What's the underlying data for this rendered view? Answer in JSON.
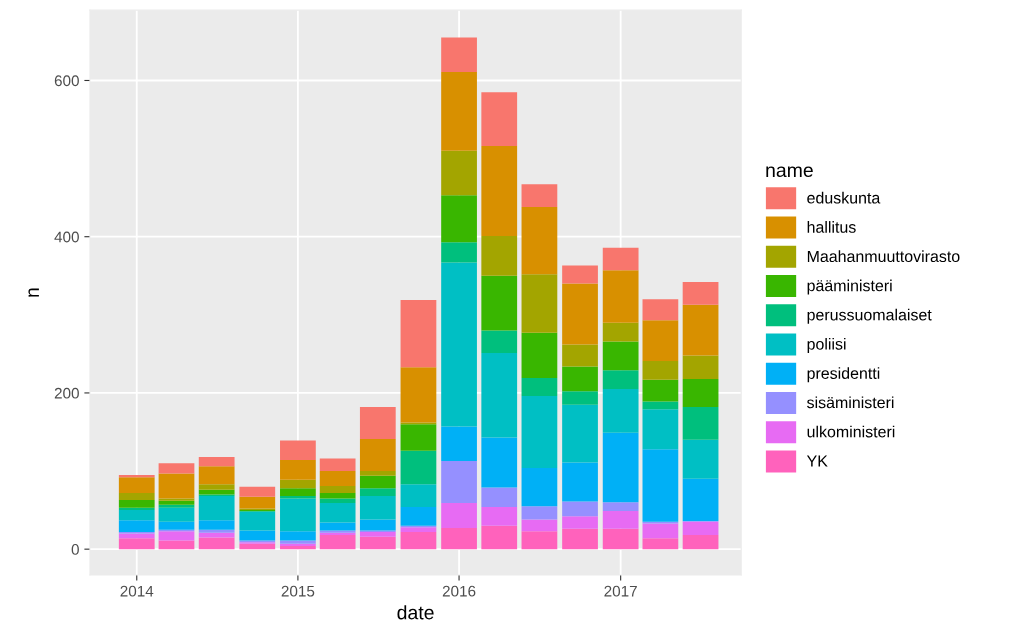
{
  "chart_data": {
    "type": "bar",
    "stacked": true,
    "xlabel": "date",
    "ylabel": "n",
    "legend_title": "name",
    "legend": "right",
    "grid": true,
    "x": [
      "2014-01-01",
      "2014-04-01",
      "2014-07-01",
      "2014-10-01",
      "2015-01-01",
      "2015-04-01",
      "2015-07-01",
      "2015-10-01",
      "2016-01-01",
      "2016-04-01",
      "2016-07-01",
      "2016-10-01",
      "2017-01-01",
      "2017-04-01",
      "2017-07-01"
    ],
    "xlim": [
      "2013-09-17",
      "2017-10-01"
    ],
    "xticks": [
      {
        "value": "2014-01-01",
        "label": "2014"
      },
      {
        "value": "2015-01-01",
        "label": "2015"
      },
      {
        "value": "2016-01-01",
        "label": "2016"
      },
      {
        "value": "2017-01-01",
        "label": "2017"
      }
    ],
    "ylim": [
      -33,
      690
    ],
    "yticks": [
      0,
      200,
      400,
      600
    ],
    "series": [
      {
        "name": "YK",
        "color": "#ff62bc",
        "values": [
          14,
          11,
          15,
          7,
          4,
          18,
          16,
          22,
          27,
          30,
          23,
          26,
          26,
          14,
          18
        ]
      },
      {
        "name": "ulkoministeri",
        "color": "#e76bf3",
        "values": [
          6,
          12,
          6,
          2,
          3,
          3,
          6,
          6,
          32,
          24,
          15,
          16,
          23,
          19,
          17
        ]
      },
      {
        "name": "sisäministeri",
        "color": "#9590ff",
        "values": [
          2,
          2,
          4,
          2,
          4,
          3,
          2,
          2,
          54,
          25,
          17,
          19,
          11,
          2,
          1
        ]
      },
      {
        "name": "presidentti",
        "color": "#00b0f6",
        "values": [
          15,
          10,
          12,
          13,
          12,
          10,
          14,
          24,
          44,
          64,
          49,
          50,
          89,
          93,
          54
        ]
      },
      {
        "name": "poliisi",
        "color": "#00bfc4",
        "values": [
          13,
          18,
          31,
          24,
          42,
          25,
          30,
          29,
          210,
          108,
          92,
          74,
          56,
          51,
          50
        ]
      },
      {
        "name": "perussuomalaiset",
        "color": "#00bf7d",
        "values": [
          3,
          4,
          2,
          1,
          3,
          6,
          10,
          43,
          26,
          29,
          23,
          17,
          24,
          10,
          42
        ]
      },
      {
        "name": "pääministeri",
        "color": "#39b600",
        "values": [
          10,
          5,
          6,
          1,
          10,
          7,
          16,
          34,
          60,
          70,
          58,
          32,
          37,
          28,
          36
        ]
      },
      {
        "name": "Maahanmuuttovirasto",
        "color": "#a3a500",
        "values": [
          9,
          3,
          7,
          2,
          11,
          9,
          6,
          2,
          57,
          51,
          75,
          28,
          24,
          24,
          30
        ]
      },
      {
        "name": "hallitus",
        "color": "#d89000",
        "values": [
          20,
          32,
          23,
          15,
          25,
          19,
          41,
          71,
          101,
          115,
          86,
          78,
          67,
          52,
          65
        ]
      },
      {
        "name": "eduskunta",
        "color": "#f8766d",
        "values": [
          3,
          13,
          12,
          13,
          25,
          16,
          41,
          86,
          44,
          69,
          29,
          23,
          29,
          27,
          29
        ]
      }
    ]
  }
}
